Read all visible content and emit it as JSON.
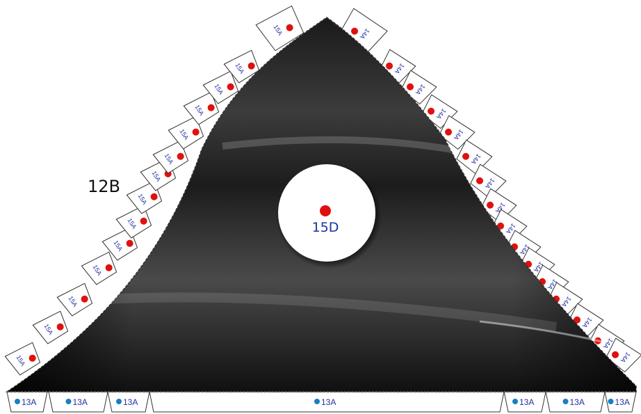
{
  "figure": {
    "label_side": "12B",
    "label_center": "15D",
    "tab_left": "15A",
    "tab_right": "14A",
    "tab_bottom": "13A"
  },
  "colors": {
    "background": "#ffffff",
    "body_dark": "#0c0c0c",
    "body_mid": "#3a3a3a",
    "outline": "#333333",
    "tab_fill": "#ffffff",
    "red_dot": "#e01010",
    "blue_dot": "#1a7fc0",
    "text_blue": "#2030a0",
    "text_black": "#111111"
  },
  "counts": {
    "left_tabs": 14,
    "right_tabs": 16,
    "bottom_tabs": 7
  }
}
